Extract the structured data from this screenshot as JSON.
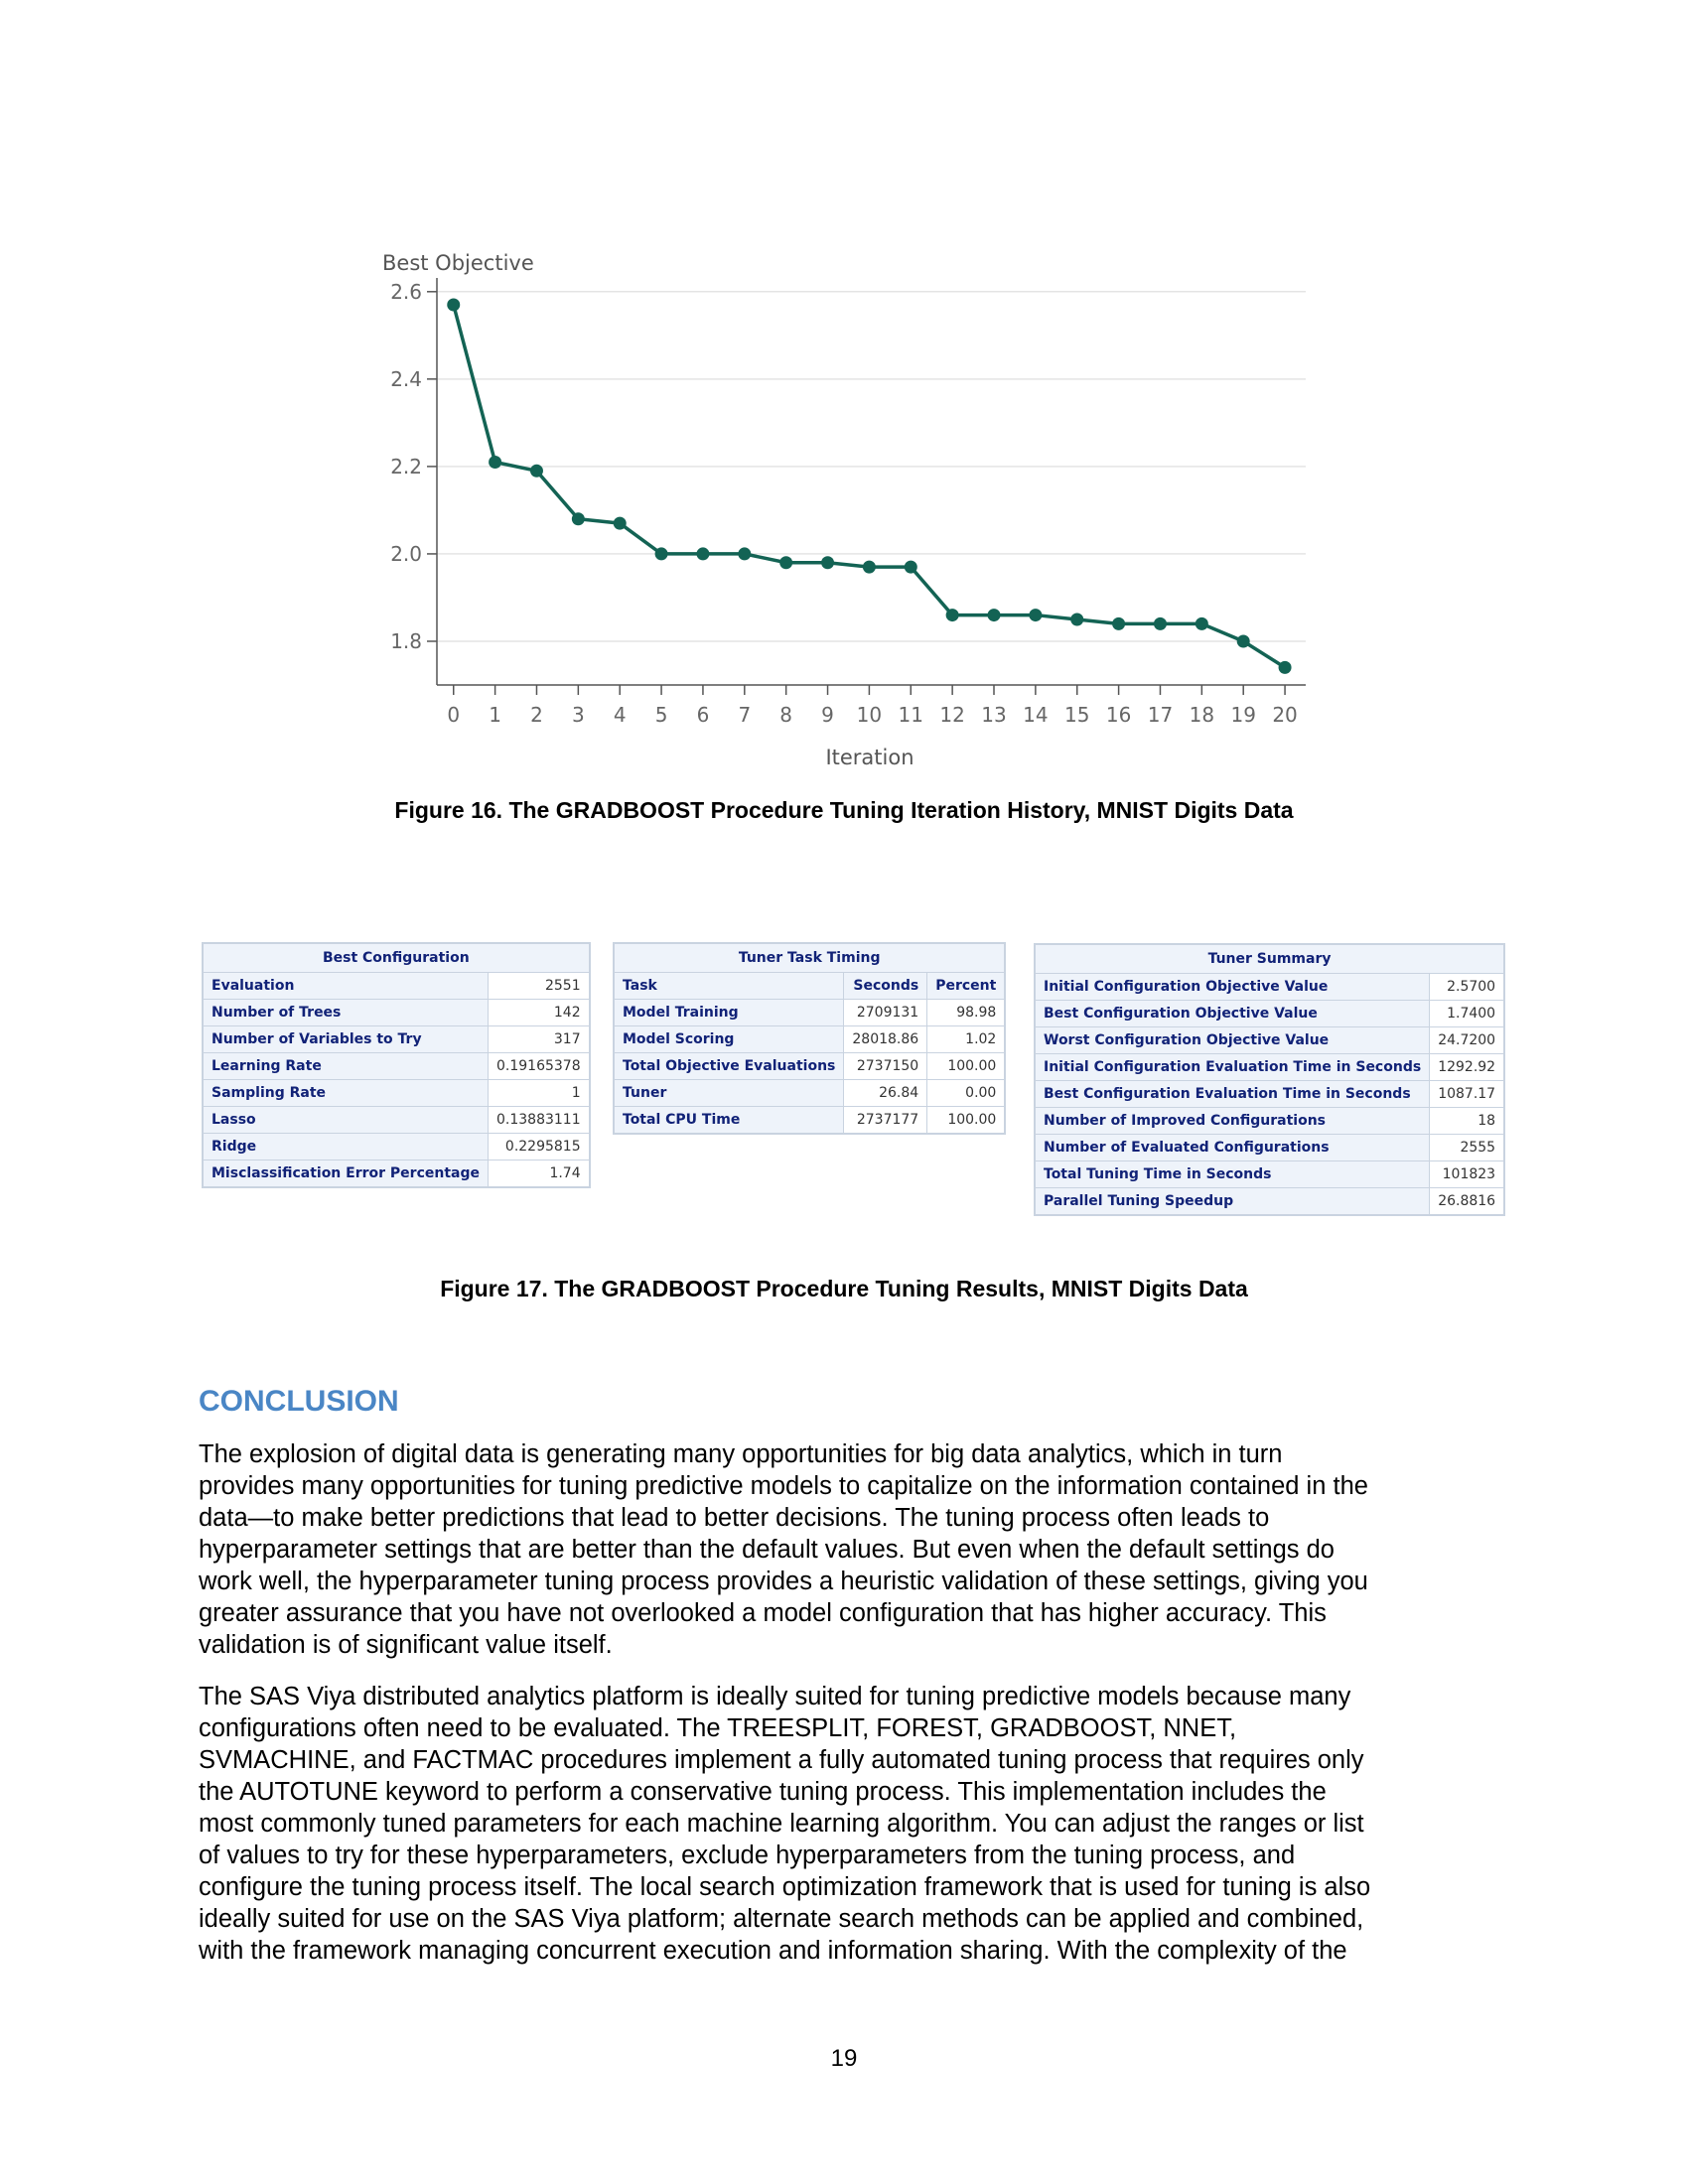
{
  "chart_data": {
    "type": "line",
    "ylabel": "Best Objective",
    "xlabel": "Iteration",
    "x": [
      0,
      1,
      2,
      3,
      4,
      5,
      6,
      7,
      8,
      9,
      10,
      11,
      12,
      13,
      14,
      15,
      16,
      17,
      18,
      19,
      20
    ],
    "y": [
      2.57,
      2.21,
      2.19,
      2.08,
      2.07,
      2.0,
      2.0,
      2.0,
      1.98,
      1.98,
      1.97,
      1.97,
      1.86,
      1.86,
      1.86,
      1.85,
      1.84,
      1.84,
      1.84,
      1.8,
      1.74
    ],
    "y_ticks": [
      "1.8",
      "2.0",
      "2.2",
      "2.4",
      "2.6"
    ],
    "y_tick_values": [
      1.8,
      2.0,
      2.2,
      2.4,
      2.6
    ],
    "ylim": [
      1.7,
      2.62
    ],
    "xlim": [
      -0.4,
      20.5
    ],
    "grid": true,
    "line_color": "#136354",
    "marker_color": "#136354"
  },
  "captions": {
    "fig16": "Figure 16. The GRADBOOST Procedure Tuning Iteration History, MNIST Digits Data",
    "fig17": "Figure 17. The GRADBOOST Procedure Tuning Results, MNIST Digits Data"
  },
  "best_config": {
    "title": "Best Configuration",
    "rows": [
      {
        "label": "Evaluation",
        "value": "2551"
      },
      {
        "label": "Number of Trees",
        "value": "142"
      },
      {
        "label": "Number of Variables to Try",
        "value": "317"
      },
      {
        "label": "Learning Rate",
        "value": "0.19165378"
      },
      {
        "label": "Sampling Rate",
        "value": "1"
      },
      {
        "label": "Lasso",
        "value": "0.13883111"
      },
      {
        "label": "Ridge",
        "value": "0.2295815"
      },
      {
        "label": "Misclassification Error Percentage",
        "value": "1.74"
      }
    ]
  },
  "task_timing": {
    "title": "Tuner Task Timing",
    "headers": [
      "Task",
      "Seconds",
      "Percent"
    ],
    "rows": [
      {
        "task": "Model Training",
        "seconds": "2709131",
        "percent": "98.98"
      },
      {
        "task": "Model Scoring",
        "seconds": "28018.86",
        "percent": "1.02"
      },
      {
        "task": "Total Objective Evaluations",
        "seconds": "2737150",
        "percent": "100.00"
      },
      {
        "task": "Tuner",
        "seconds": "26.84",
        "percent": "0.00"
      },
      {
        "task": "Total CPU Time",
        "seconds": "2737177",
        "percent": "100.00"
      }
    ]
  },
  "tuner_summary": {
    "title": "Tuner Summary",
    "rows": [
      {
        "label": "Initial Configuration Objective Value",
        "value": "2.5700"
      },
      {
        "label": "Best Configuration Objective Value",
        "value": "1.7400"
      },
      {
        "label": "Worst Configuration Objective Value",
        "value": "24.7200"
      },
      {
        "label": "Initial Configuration Evaluation Time in Seconds",
        "value": "1292.92"
      },
      {
        "label": "Best Configuration Evaluation Time in Seconds",
        "value": "1087.17"
      },
      {
        "label": "Number of Improved Configurations",
        "value": "18"
      },
      {
        "label": "Number of Evaluated Configurations",
        "value": "2555"
      },
      {
        "label": "Total Tuning Time in Seconds",
        "value": "101823"
      },
      {
        "label": "Parallel Tuning Speedup",
        "value": "26.8816"
      }
    ]
  },
  "conclusion": {
    "heading": "CONCLUSION",
    "p1_lines": [
      "The explosion of digital data is generating many opportunities for big data analytics, which in turn",
      "provides many opportunities for tuning predictive models to capitalize on the information contained in the",
      "data—to make better predictions that lead to better decisions. The tuning process often leads to",
      "hyperparameter settings that are better than the default values.  But even when the default settings do",
      "work well, the hyperparameter tuning process provides a heuristic validation of these settings, giving you",
      "greater assurance that you have not overlooked a model configuration that has higher accuracy.  This",
      "validation is of significant value itself."
    ],
    "p2_lines": [
      "The SAS Viya distributed analytics platform is ideally suited for tuning predictive models because many",
      "configurations often need to be evaluated. The TREESPLIT, FOREST, GRADBOOST, NNET,",
      "SVMACHINE, and FACTMAC procedures implement a fully automated tuning process that requires only",
      "the AUTOTUNE keyword to perform a conservative tuning process. This implementation includes the",
      "most commonly tuned parameters for each machine learning algorithm. You can adjust the ranges or list",
      "of values to try for these hyperparameters, exclude hyperparameters from the tuning process, and",
      "configure the tuning process itself. The local search optimization framework that is used for tuning is also",
      "ideally suited for use on the SAS Viya platform; alternate search methods can be applied and combined,",
      "with the framework managing concurrent execution and information sharing. With the complexity of the"
    ]
  },
  "page_number": "19"
}
